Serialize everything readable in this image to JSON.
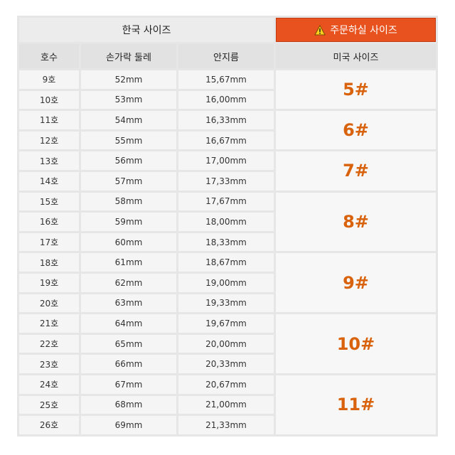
{
  "header": {
    "korean_size": "한국 사이즈",
    "order_size": "주문하실 사이즈"
  },
  "table": {
    "columns": [
      "호수",
      "손가락 둘레",
      "안지름",
      "미국 사이즈"
    ],
    "rows": [
      [
        "9호",
        "52mm",
        "15,67mm",
        "5#"
      ],
      [
        "10호",
        "53mm",
        "16,00mm",
        null
      ],
      [
        "11호",
        "54mm",
        "16,33mm",
        "6#"
      ],
      [
        "12호",
        "55mm",
        "16,67mm",
        null
      ],
      [
        "13호",
        "56mm",
        "17,00mm",
        "7#"
      ],
      [
        "14호",
        "57mm",
        "17,33mm",
        null
      ],
      [
        "15호",
        "58mm",
        "17,67mm",
        "8#"
      ],
      [
        "16호",
        "59mm",
        "18,00mm",
        null
      ],
      [
        "17호",
        "60mm",
        "18,33mm",
        null
      ],
      [
        "18호",
        "61mm",
        "18,67mm",
        "9#"
      ],
      [
        "19호",
        "62mm",
        "19,00mm",
        null
      ],
      [
        "20호",
        "63mm",
        "19,33mm",
        null
      ],
      [
        "21호",
        "64mm",
        "19,67mm",
        "10#"
      ],
      [
        "22호",
        "65mm",
        "20,00mm",
        null
      ],
      [
        "23호",
        "66mm",
        "20,33mm",
        null
      ],
      [
        "24호",
        "67mm",
        "20,67mm",
        "11#"
      ],
      [
        "25호",
        "68mm",
        "21,00mm",
        null
      ],
      [
        "26호",
        "69mm",
        "21,33mm",
        null
      ]
    ]
  }
}
